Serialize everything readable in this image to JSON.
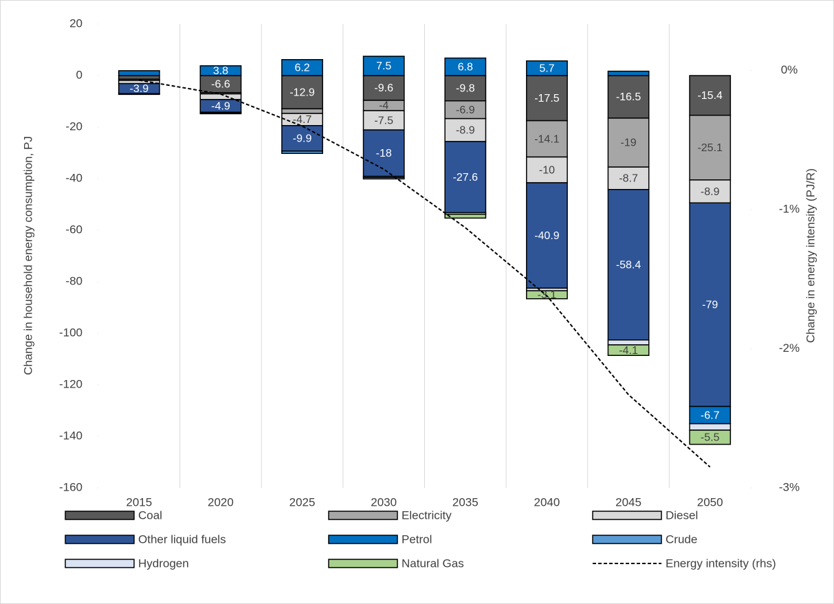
{
  "chart_data": {
    "type": "bar",
    "stacked": true,
    "y_label": "Change in household energy consumption, PJ",
    "y2_label": "Change in energy intensity (PJ/R)",
    "categories": [
      "2015",
      "2020",
      "2025",
      "2030",
      "2035",
      "2040",
      "2045",
      "2050"
    ],
    "ylim": [
      -160,
      20
    ],
    "yticks": [
      -160,
      -140,
      -120,
      -100,
      -80,
      -60,
      -40,
      -20,
      0,
      20
    ],
    "y2lim": [
      -3,
      0.3333
    ],
    "y2ticks": [
      {
        "value": -3,
        "label": "-3%"
      },
      {
        "value": -2,
        "label": "-2%"
      },
      {
        "value": -1,
        "label": "-1%"
      },
      {
        "value": 0,
        "label": "0%"
      }
    ],
    "grid": "x",
    "series": [
      {
        "name": "Coal",
        "color": "#595959",
        "values": [
          -1.4,
          -6.6,
          -12.9,
          -9.6,
          -9.8,
          -17.5,
          -16.5,
          -15.4
        ]
      },
      {
        "name": "Electricity",
        "color": "#a6a6a6",
        "values": [
          -0.5,
          -0.5,
          -1.8,
          -4.0,
          -6.9,
          -14.1,
          -19.0,
          -25.1
        ]
      },
      {
        "name": "Diesel",
        "color": "#d9d9d9",
        "values": [
          -1.2,
          -2.2,
          -4.7,
          -7.5,
          -8.9,
          -10.0,
          -8.7,
          -8.9
        ]
      },
      {
        "name": "Other liquid fuels",
        "color": "#2f5597",
        "values": [
          -3.9,
          -4.9,
          -9.9,
          -18.0,
          -27.6,
          -40.9,
          -58.4,
          -79.0
        ]
      },
      {
        "name": "Petrol",
        "color": "#0070c0",
        "values": [
          1.9,
          3.8,
          6.2,
          7.5,
          6.8,
          5.7,
          1.7,
          -6.7
        ]
      },
      {
        "name": "Crude",
        "color": "#5b9bd5",
        "values": [
          -0.2,
          -0.3,
          -0.9,
          -0.5,
          0,
          0,
          0,
          0
        ]
      },
      {
        "name": "Hydrogen",
        "color": "#dae3f3",
        "values": [
          -0.1,
          -0.3,
          0,
          -0.5,
          -0.6,
          -1.0,
          -1.9,
          -2.5
        ]
      },
      {
        "name": "Natural Gas",
        "color": "#a9d18e",
        "values": [
          0,
          0,
          0,
          0,
          -1.5,
          -3.1,
          -4.1,
          -5.5
        ]
      },
      {
        "name": "Energy intensity (rhs)",
        "type": "line",
        "axis": "y2",
        "color": "#000000",
        "values": [
          -0.07,
          -0.17,
          -0.4,
          -0.71,
          -1.13,
          -1.62,
          -2.33,
          -2.85
        ]
      }
    ]
  }
}
